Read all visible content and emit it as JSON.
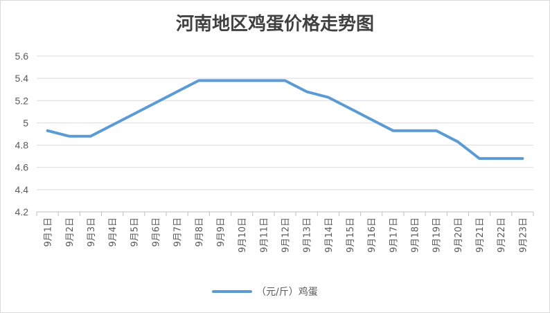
{
  "chart_data": {
    "type": "line",
    "title": "河南地区鸡蛋价格走势图",
    "xlabel": "",
    "ylabel": "",
    "ylim": [
      4.2,
      5.6
    ],
    "yticks": [
      "4.2",
      "4.4",
      "4.6",
      "4.8",
      "5",
      "5.2",
      "5.4",
      "5.6"
    ],
    "grid": true,
    "legend_position": "bottom",
    "categories": [
      "9月1日",
      "9月2日",
      "9月3日",
      "9月4日",
      "9月5日",
      "9月6日",
      "9月7日",
      "9月8日",
      "9月9日",
      "9月10日",
      "9月11日",
      "9月12日",
      "9月13日",
      "9月14日",
      "9月15日",
      "9月16日",
      "9月17日",
      "9月18日",
      "9月19日",
      "9月20日",
      "9月21日",
      "9月22日",
      "9月23日"
    ],
    "series": [
      {
        "name": "（元/斤）鸡蛋",
        "color": "#5B9BD5",
        "values": [
          4.93,
          4.88,
          4.88,
          4.98,
          5.08,
          5.18,
          5.28,
          5.38,
          5.38,
          5.38,
          5.38,
          5.38,
          5.28,
          5.23,
          5.13,
          5.03,
          4.93,
          4.93,
          4.93,
          4.83,
          4.68,
          4.68,
          4.68
        ]
      }
    ]
  }
}
